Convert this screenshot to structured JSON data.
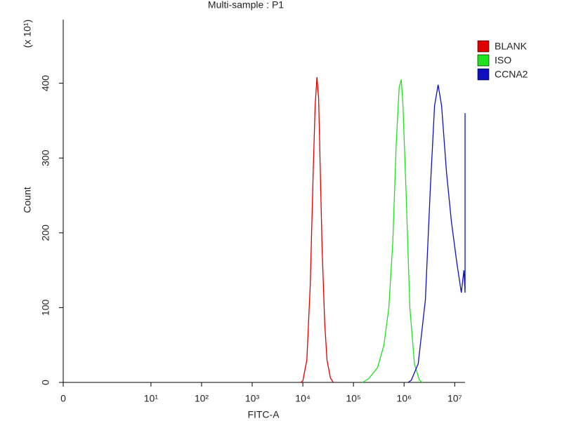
{
  "chart_data": {
    "type": "histogram-overlay",
    "title": "Multi-sample : P1",
    "xlabel": "FITC-A",
    "ylabel": "Count",
    "y_multiplier": "(x 10¹)",
    "xscale": "biexponential",
    "xlim": [
      0,
      16000000
    ],
    "xticks": [
      0,
      {
        "value": 10,
        "label": "10¹"
      },
      {
        "value": 100,
        "label": "10²"
      },
      {
        "value": 1000,
        "label": "10³"
      },
      {
        "value": 10000,
        "label": "10⁴"
      },
      {
        "value": 100000,
        "label": "10⁵"
      },
      {
        "value": 1000000,
        "label": "10⁶"
      },
      {
        "value": 10000000,
        "label": "10⁷"
      }
    ],
    "ylim": [
      0,
      485
    ],
    "yticks": [
      0,
      100,
      200,
      300,
      400
    ],
    "legend": "right",
    "series": [
      {
        "name": "BLANK",
        "color": "#e00000",
        "x": [
          9000,
          10000,
          12000,
          14000,
          16000,
          17500,
          19000,
          20500,
          22000,
          24000,
          27000,
          30000,
          35000,
          40000
        ],
        "values": [
          0,
          2,
          30,
          130,
          280,
          370,
          408,
          380,
          290,
          180,
          80,
          30,
          6,
          0
        ]
      },
      {
        "name": "ISO",
        "color": "#20e020",
        "x": [
          150000,
          200000,
          300000,
          400000,
          500000,
          600000,
          700000,
          800000,
          880000,
          950000,
          1100000,
          1300000,
          1600000,
          2000000,
          2300000
        ],
        "values": [
          0,
          5,
          20,
          50,
          100,
          190,
          320,
          395,
          405,
          370,
          250,
          100,
          25,
          3,
          0
        ]
      },
      {
        "name": "CCNA2",
        "color": "#1010c0",
        "x": [
          1200000,
          1390000,
          1900000,
          2630000,
          3300000,
          4000000,
          4700000,
          5500000,
          6900000,
          8600000,
          11000000,
          13500000,
          15200000,
          16000000,
          16000000
        ],
        "values": [
          0,
          3,
          25,
          110,
          260,
          370,
          398,
          370,
          280,
          215,
          160,
          120,
          150,
          120,
          360
        ]
      }
    ]
  }
}
